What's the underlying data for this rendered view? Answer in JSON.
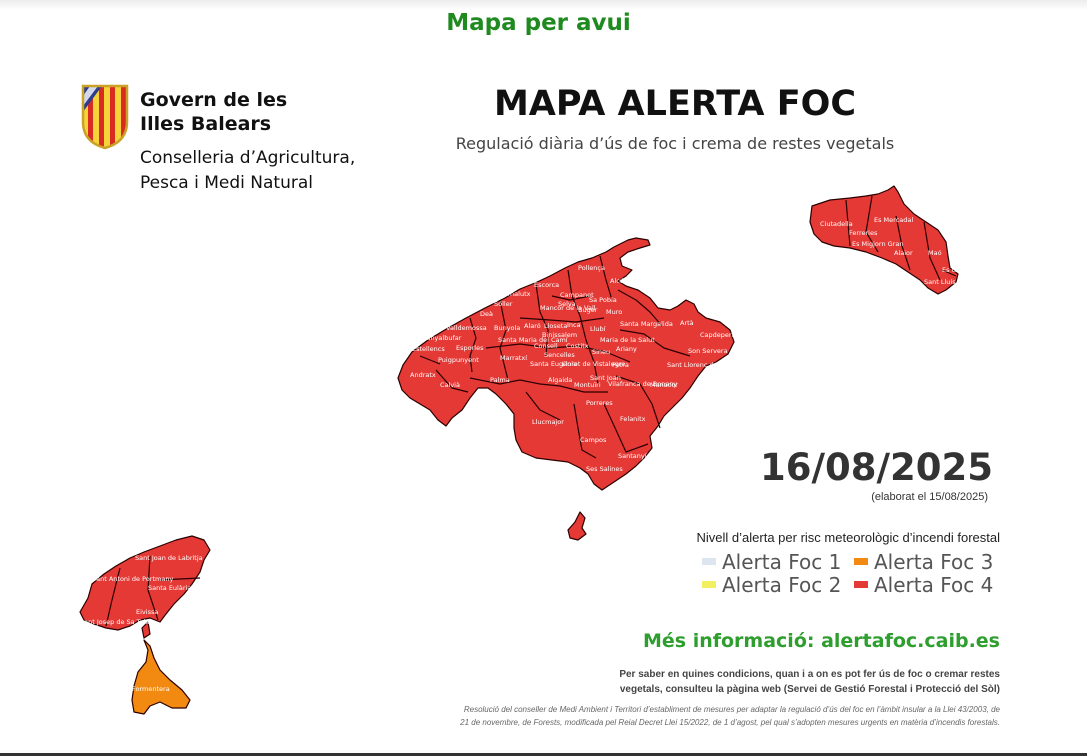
{
  "page_heading": "Mapa per avui",
  "logo": {
    "govern_line1": "Govern de les",
    "govern_line2": "Illes Balears",
    "conselleria_line1": "Conselleria d’Agricultura,",
    "conselleria_line2": "Pesca i Medi Natural"
  },
  "title": "MAPA ALERTA FOC",
  "subtitle": "Regulació diària d’ús de foc i crema de restes vegetals",
  "date": "16/08/2025",
  "elaborated": "(elaborat el 15/08/2025)",
  "legend": {
    "title": "Nivell d’alerta per risc meteorològic d’incendi forestal",
    "items": [
      {
        "label": "Alerta Foc 1",
        "color": "#dde6ee"
      },
      {
        "label": "Alerta Foc 2",
        "color": "#f2f060"
      },
      {
        "label": "Alerta Foc 3",
        "color": "#f28a12"
      },
      {
        "label": "Alerta Foc 4",
        "color": "#e53935"
      }
    ]
  },
  "more_info": "Més informació: alertafoc.caib.es",
  "note_line1": "Per saber en quines condicions, quan i a on es pot fer ús de foc o cremar restes",
  "note_line2": "vegetals, consulteu la pàgina web (Servei de Gestió Forestal i Protecció del Sòl)",
  "legal_line1": "Resolució del conseller de Medi Ambient i Territori d’establiment de mesures per adaptar la regulació d’ús del foc en l’àmbit insular a la Llei 43/2003, de",
  "legal_line2": "21 de novembre, de Forests, modificada pel Reial Decret Llei 15/2022, de 1 d’agost, pel qual s’adopten mesures urgents en matèria d’incendis forestals.",
  "map": {
    "level_colors": {
      "alerta_foc_4": "#e53935",
      "alerta_foc_3": "#f28a12"
    },
    "islands": [
      {
        "name": "Mallorca",
        "alert_level": 4
      },
      {
        "name": "Menorca",
        "alert_level": 4
      },
      {
        "name": "Eivissa",
        "alert_level": 4
      },
      {
        "name": "Formentera",
        "alert_level": 3
      }
    ],
    "municipalities": [
      {
        "name": "Pollença"
      },
      {
        "name": "Escorca"
      },
      {
        "name": "Alcúdia"
      },
      {
        "name": "Campanet"
      },
      {
        "name": "Fornalutx"
      },
      {
        "name": "Sa Pobla"
      },
      {
        "name": "Sóller"
      },
      {
        "name": "Selva"
      },
      {
        "name": "Búger"
      },
      {
        "name": "Deà"
      },
      {
        "name": "Muro"
      },
      {
        "name": "Valldemossa"
      },
      {
        "name": "Bunyola"
      },
      {
        "name": "Mancor de la Vall"
      },
      {
        "name": "Alaró"
      },
      {
        "name": "Lloseta"
      },
      {
        "name": "Inca"
      },
      {
        "name": "Binissalem"
      },
      {
        "name": "Llubí"
      },
      {
        "name": "Santa Margalida"
      },
      {
        "name": "Artà"
      },
      {
        "name": "Capdepera"
      },
      {
        "name": "Banyalbufar"
      },
      {
        "name": "Santa Maria del Camí"
      },
      {
        "name": "Consell"
      },
      {
        "name": "Costitx"
      },
      {
        "name": "Maria de la Salut"
      },
      {
        "name": "Estellencs"
      },
      {
        "name": "Esporles"
      },
      {
        "name": "Marratxí"
      },
      {
        "name": "Sencelles"
      },
      {
        "name": "Sineu"
      },
      {
        "name": "Ariany"
      },
      {
        "name": "Son Servera"
      },
      {
        "name": "Puigpunyent"
      },
      {
        "name": "Santa Eugènia"
      },
      {
        "name": "Lloret de Vistalegre"
      },
      {
        "name": "Petra"
      },
      {
        "name": "Sant Llorenç des Cardassar"
      },
      {
        "name": "Andratx"
      },
      {
        "name": "Calvià"
      },
      {
        "name": "Palma"
      },
      {
        "name": "Algaida"
      },
      {
        "name": "Montuïri"
      },
      {
        "name": "Sant Joan"
      },
      {
        "name": "Vilafranca de Bonany"
      },
      {
        "name": "Manacor"
      },
      {
        "name": "Porreres"
      },
      {
        "name": "Llucmajor"
      },
      {
        "name": "Felanitx"
      },
      {
        "name": "Campos"
      },
      {
        "name": "Santanyí"
      },
      {
        "name": "Ses Salines"
      },
      {
        "name": "Ciutadella"
      },
      {
        "name": "Es Mercadal"
      },
      {
        "name": "Ferreries"
      },
      {
        "name": "Es Migjorn Gran"
      },
      {
        "name": "Alaior"
      },
      {
        "name": "Maó"
      },
      {
        "name": "Es Castell"
      },
      {
        "name": "Sant Lluís"
      },
      {
        "name": "Sant Joan de Labritja"
      },
      {
        "name": "Sant Antoni de Portmany"
      },
      {
        "name": "Santa Eulària des Riu"
      },
      {
        "name": "Eivissa"
      },
      {
        "name": "Sant Josep de Sa Talaia"
      },
      {
        "name": "Formentera"
      }
    ]
  }
}
